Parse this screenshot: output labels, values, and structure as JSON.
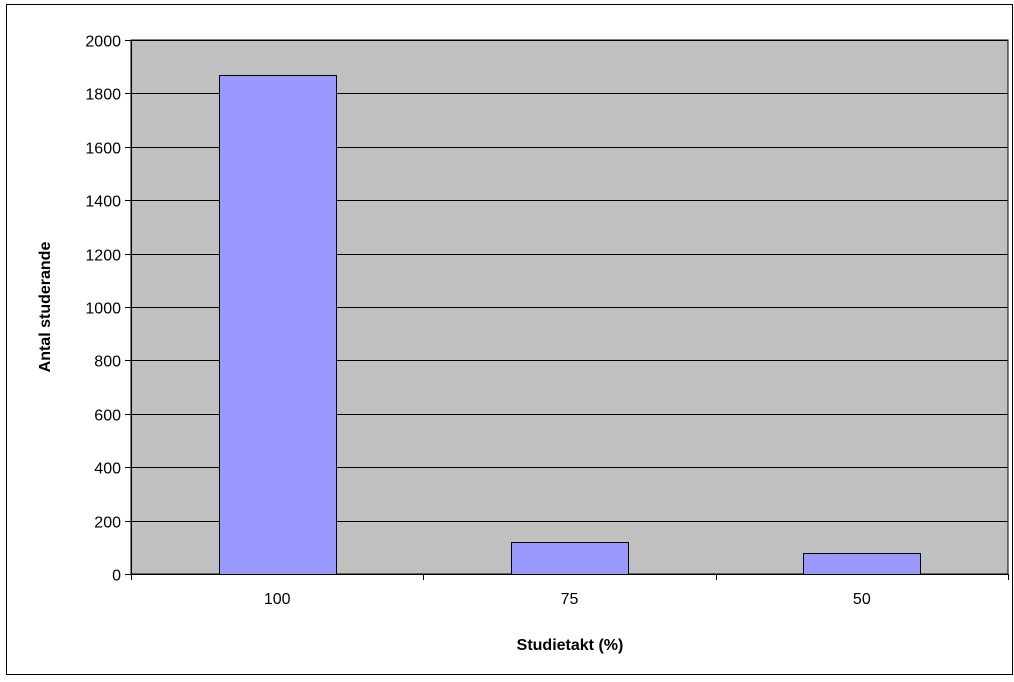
{
  "chart_data": {
    "type": "bar",
    "categories": [
      "100",
      "75",
      "50"
    ],
    "values": [
      1870,
      120,
      80
    ],
    "xlabel": "Studietakt (%)",
    "ylabel": "Antal studerande",
    "ylim": [
      0,
      2000
    ],
    "yticks": [
      0,
      200,
      400,
      600,
      800,
      1000,
      1200,
      1400,
      1600,
      1800,
      2000
    ],
    "grid": true,
    "legend": "none",
    "colors": {
      "plot_background": "#c0c0c0",
      "bar_fill": "#9999ff",
      "bar_stroke": "#000000",
      "gridline": "#000000",
      "frame": "#000000"
    }
  }
}
